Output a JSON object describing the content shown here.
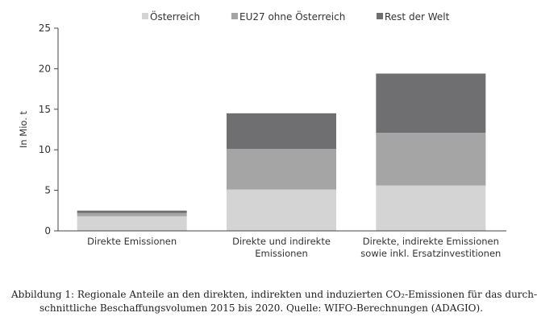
{
  "chart_data": {
    "type": "bar",
    "stacked": true,
    "categories": [
      [
        "Direkte Emissionen"
      ],
      [
        "Direkte und indirekte",
        "Emissionen"
      ],
      [
        "Direkte, indirekte Emissionen",
        "sowie inkl. Ersatzinvestitionen"
      ]
    ],
    "series": [
      {
        "name": "Österreich",
        "color": "#d4d4d4",
        "values": [
          1.8,
          5.1,
          5.6
        ]
      },
      {
        "name": "EU27 ohne Österreich",
        "color": "#a5a5a5",
        "values": [
          0.4,
          5.0,
          6.5
        ]
      },
      {
        "name": "Rest der Welt",
        "color": "#6f6f72",
        "values": [
          0.3,
          4.4,
          7.3
        ]
      }
    ],
    "ylabel": "In Mio. t",
    "ylim": [
      0,
      25
    ],
    "yticks": [
      0,
      5,
      10,
      15,
      20,
      25
    ],
    "grid": false,
    "legend": "top"
  },
  "caption": {
    "line1": "Abbildung 1: Regionale Anteile an den direkten, indirekten und induzierten CO₂-Emissionen für das durch-",
    "line2": "schnittliche Beschaffungsvolumen 2015 bis 2020. Quelle: WIFO-Berechnungen (ADAGIO)."
  }
}
